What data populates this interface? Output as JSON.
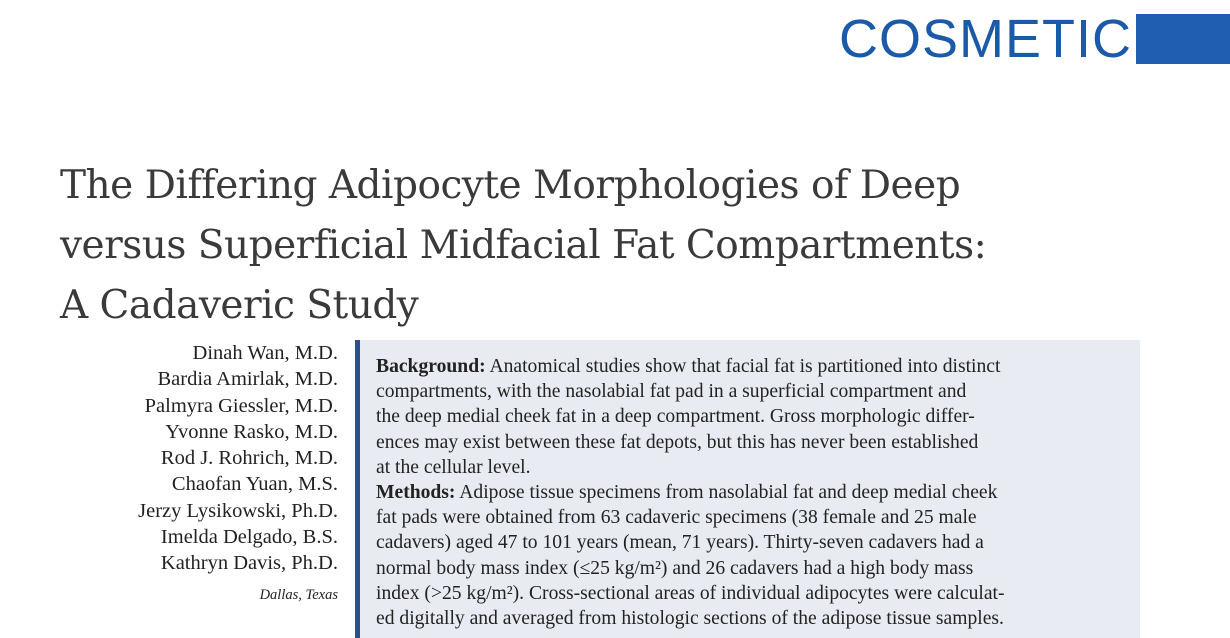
{
  "section": {
    "label": "COSMETIC"
  },
  "title": {
    "lines": [
      "The Differing Adipocyte Morphologies of Deep",
      "versus Superficial Midfacial Fat Compartments:",
      "A Cadaveric Study"
    ]
  },
  "authors": [
    "Dinah Wan, M.D.",
    "Bardia Amirlak, M.D.",
    "Palmyra Giessler, M.D.",
    "Yvonne Rasko, M.D.",
    "Rod J. Rohrich, M.D.",
    "Chaofan Yuan, M.S.",
    "Jerzy Lysikowski, Ph.D.",
    "Imelda Delgado, B.S.",
    "Kathryn Davis, Ph.D."
  ],
  "affiliation": "Dallas, Texas",
  "abstract": {
    "background_label": "Background:",
    "background_lines": [
      " Anatomical studies show that facial fat is partitioned into distinct",
      "compartments, with the nasolabial fat pad in a superficial compartment and",
      "the deep medial cheek fat in a deep compartment. Gross morphologic differ-",
      "ences may exist between these fat depots, but this has never been established",
      "at the cellular level."
    ],
    "methods_label": "Methods:",
    "methods_lines": [
      " Adipose tissue specimens from nasolabial fat and deep medial cheek",
      "fat pads were obtained from 63 cadaveric specimens (38 female and 25 male",
      "cadavers) aged 47 to 101 years (mean, 71 years). Thirty-seven cadavers had a",
      "normal body mass index (≤25 kg/m²) and 26 cadavers had a high body mass",
      "index (>25 kg/m²). Cross-sectional areas of individual adipocytes were calculat-",
      "ed digitally and averaged from histologic sections of the adipose tissue samples."
    ]
  },
  "colors": {
    "accent": "#1f5eb0",
    "abstract_bg": "#e8ebf1",
    "rule": "#2a4f92"
  }
}
